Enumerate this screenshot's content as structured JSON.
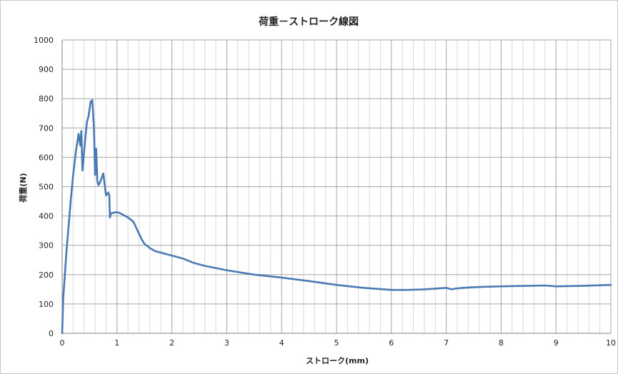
{
  "chart_data": {
    "type": "line",
    "title": "荷重－ストローク線図",
    "xlabel": "ストローク(mm)",
    "ylabel": "荷重(N)",
    "xlim": [
      0,
      10
    ],
    "ylim": [
      0,
      1000
    ],
    "x_major_ticks": [
      0,
      1,
      2,
      3,
      4,
      5,
      6,
      7,
      8,
      9,
      10
    ],
    "y_major_ticks": [
      0,
      100,
      200,
      300,
      400,
      500,
      600,
      700,
      800,
      900,
      1000
    ],
    "x_minor_step": 0.2,
    "grid": true,
    "legend": "none",
    "line_color": "#4a7ab3",
    "series": [
      {
        "x": [
          0,
          0.02,
          0.05,
          0.08,
          0.12,
          0.16,
          0.2,
          0.25,
          0.3,
          0.33,
          0.35,
          0.37,
          0.39,
          0.41,
          0.43,
          0.45,
          0.48,
          0.52,
          0.55,
          0.58,
          0.6,
          0.62,
          0.64,
          0.66,
          0.68,
          0.7,
          0.72,
          0.75,
          0.8,
          0.84,
          0.86,
          0.87,
          0.89,
          0.91,
          0.93,
          0.95,
          0.96,
          1.0,
          1.05,
          1.1,
          1.2,
          1.3,
          1.4,
          1.45,
          1.5,
          1.55,
          1.6,
          1.7,
          1.8,
          2.0,
          2.2,
          2.4,
          2.6,
          3.0,
          3.5,
          4.0,
          4.5,
          5.0,
          5.5,
          6.0,
          6.3,
          6.6,
          7.0,
          7.1,
          7.15,
          7.3,
          7.6,
          8.0,
          8.5,
          8.8,
          9.0,
          9.5,
          10.0
        ],
        "y": [
          0,
          120,
          200,
          280,
          370,
          460,
          540,
          620,
          680,
          640,
          690,
          555,
          600,
          640,
          680,
          720,
          740,
          790,
          795,
          700,
          540,
          630,
          520,
          505,
          510,
          520,
          530,
          545,
          470,
          480,
          470,
          395,
          410,
          410,
          410,
          412,
          412,
          413,
          410,
          405,
          395,
          380,
          340,
          320,
          305,
          298,
          290,
          280,
          275,
          265,
          255,
          240,
          230,
          215,
          200,
          190,
          178,
          165,
          155,
          148,
          148,
          150,
          155,
          150,
          152,
          155,
          158,
          160,
          162,
          163,
          160,
          162,
          165
        ]
      }
    ]
  }
}
